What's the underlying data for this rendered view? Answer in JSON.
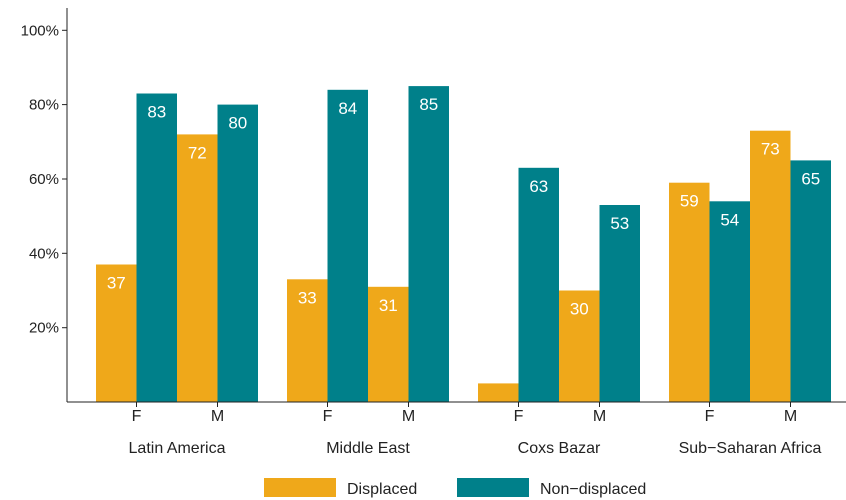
{
  "chart_data": {
    "type": "bar",
    "groups": [
      "Latin America",
      "Middle East",
      "Coxs Bazar",
      "Sub−Saharan Africa"
    ],
    "subcategories": [
      "F",
      "M"
    ],
    "series": [
      {
        "name": "Displaced",
        "color": "#EFA81A",
        "values": [
          [
            37,
            72
          ],
          [
            33,
            31
          ],
          [
            5,
            30
          ],
          [
            59,
            73
          ]
        ],
        "labels": [
          [
            "37",
            "72"
          ],
          [
            "33",
            "31"
          ],
          [
            "",
            "30"
          ],
          [
            "59",
            "73"
          ]
        ]
      },
      {
        "name": "Non−displaced",
        "color": "#00808A",
        "values": [
          [
            83,
            80
          ],
          [
            84,
            85
          ],
          [
            63,
            53
          ],
          [
            54,
            65
          ]
        ],
        "labels": [
          [
            "83",
            "80"
          ],
          [
            "84",
            "85"
          ],
          [
            "63",
            "53"
          ],
          [
            "54",
            "65"
          ]
        ]
      }
    ],
    "yticks": [
      20,
      40,
      60,
      80,
      100
    ],
    "ytick_labels": [
      "20%",
      "40%",
      "60%",
      "80%",
      "100%"
    ],
    "ylim": [
      0,
      106
    ],
    "grid": false,
    "legend": "bottom"
  }
}
